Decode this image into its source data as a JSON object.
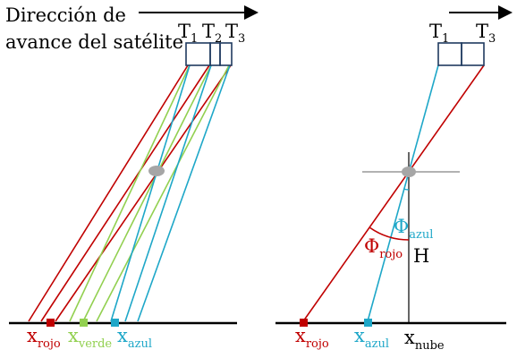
{
  "title_line1": "Dirección de",
  "title_line2": "avance del satélite",
  "left": {
    "detector_labels": [
      {
        "main": "T",
        "sub": "1"
      },
      {
        "main": "T",
        "sub": "2"
      },
      {
        "main": "T",
        "sub": "3"
      }
    ],
    "ground_labels": [
      {
        "main": "x",
        "sub": "rojo",
        "color": "#c00000"
      },
      {
        "main": "x",
        "sub": "verde",
        "color": "#92d050"
      },
      {
        "main": "x",
        "sub": "azul",
        "color": "#1ea7c8"
      }
    ]
  },
  "right": {
    "detector_labels": [
      {
        "main": "T",
        "sub": "1"
      },
      {
        "main": "T",
        "sub": "3"
      }
    ],
    "ground_labels": [
      {
        "main": "x",
        "sub": "rojo",
        "color": "#c00000"
      },
      {
        "main": "x",
        "sub": "azul",
        "color": "#1ea7c8"
      },
      {
        "main": "x",
        "sub": "nube",
        "color": "#000000"
      }
    ],
    "phi_azul": {
      "main": "Φ",
      "sub": "azul"
    },
    "phi_rojo": {
      "main": "Φ",
      "sub": "rojo"
    },
    "height_label": "H"
  },
  "colors": {
    "red": "#c00000",
    "green": "#92d050",
    "blue": "#1ea7c8",
    "frame": "#1f3a5f",
    "cloud": "#a6a6a6"
  }
}
